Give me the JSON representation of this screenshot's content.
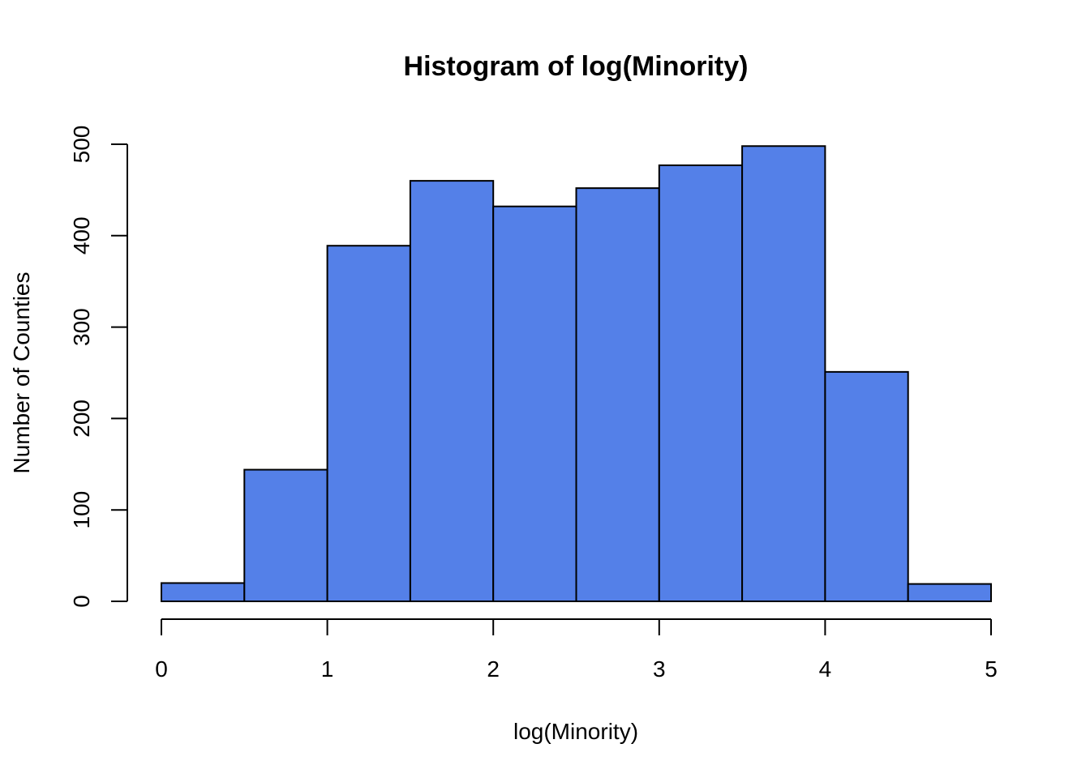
{
  "chart_data": {
    "type": "bar",
    "title": "Histogram of log(Minority)",
    "xlabel": "log(Minority)",
    "ylabel": "Number of Counties",
    "bins": [
      {
        "x0": 0.0,
        "x1": 0.5,
        "count": 20
      },
      {
        "x0": 0.5,
        "x1": 1.0,
        "count": 144
      },
      {
        "x0": 1.0,
        "x1": 1.5,
        "count": 389
      },
      {
        "x0": 1.5,
        "x1": 2.0,
        "count": 460
      },
      {
        "x0": 2.0,
        "x1": 2.5,
        "count": 432
      },
      {
        "x0": 2.5,
        "x1": 3.0,
        "count": 452
      },
      {
        "x0": 3.0,
        "x1": 3.5,
        "count": 477
      },
      {
        "x0": 3.5,
        "x1": 4.0,
        "count": 498
      },
      {
        "x0": 4.0,
        "x1": 4.5,
        "count": 251
      },
      {
        "x0": 4.5,
        "x1": 5.0,
        "count": 19
      }
    ],
    "xlim": [
      0,
      5
    ],
    "ylim": [
      0,
      500
    ],
    "xticks": [
      0,
      1,
      2,
      3,
      4,
      5
    ],
    "yticks": [
      0,
      100,
      200,
      300,
      400,
      500
    ],
    "bar_color": "#5480E8",
    "grid": false
  }
}
